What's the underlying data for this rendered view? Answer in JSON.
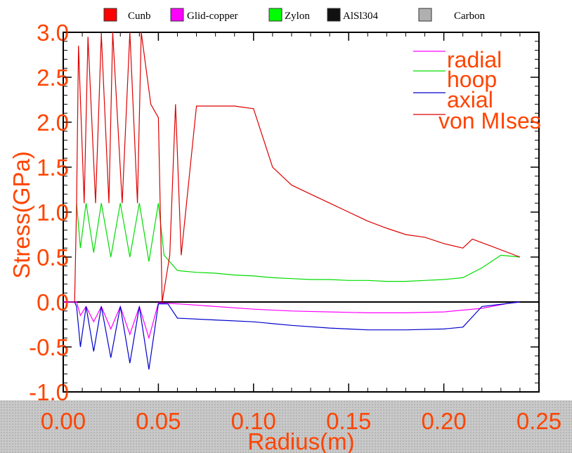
{
  "legend": [
    {
      "label": "Cunb",
      "color": "#ff0000"
    },
    {
      "label": "Glid-copper",
      "color": "#ff00ff"
    },
    {
      "label": "Zylon",
      "color": "#00ff00"
    },
    {
      "label": "AlSl304",
      "color": "#111111"
    },
    {
      "label": "Carbon",
      "color": "#b0b0b0"
    }
  ],
  "chart_data": {
    "type": "line",
    "xlabel": "Radius(m)",
    "ylabel": "Stress(GPa)",
    "xlim": [
      0.0,
      0.25
    ],
    "ylim": [
      -1.0,
      3.0
    ],
    "x_ticks": [
      "0.00",
      "0.05",
      "0.10",
      "0.15",
      "0.20",
      "0.25"
    ],
    "y_ticks": [
      "-1.0",
      "-0.5",
      "0.0",
      "0.5",
      "1.0",
      "1.5",
      "2.0",
      "2.5",
      "3.0"
    ],
    "grid": false,
    "legend_position": "top-right",
    "series": [
      {
        "name": "radial",
        "color": "#ff00ff",
        "x": [
          0.0,
          0.007,
          0.009,
          0.012,
          0.016,
          0.02,
          0.025,
          0.03,
          0.035,
          0.04,
          0.045,
          0.05,
          0.06,
          0.08,
          0.1,
          0.12,
          0.14,
          0.16,
          0.18,
          0.2,
          0.22,
          0.235,
          0.24
        ],
        "y": [
          0.0,
          0.0,
          -0.15,
          -0.05,
          -0.22,
          -0.05,
          -0.3,
          -0.05,
          -0.36,
          -0.05,
          -0.4,
          -0.01,
          -0.02,
          -0.05,
          -0.08,
          -0.1,
          -0.11,
          -0.12,
          -0.12,
          -0.11,
          -0.07,
          -0.01,
          0.0
        ]
      },
      {
        "name": "hoop",
        "color": "#00dd00",
        "x": [
          0.007,
          0.009,
          0.012,
          0.016,
          0.02,
          0.025,
          0.03,
          0.035,
          0.04,
          0.045,
          0.05,
          0.053,
          0.06,
          0.07,
          0.08,
          0.09,
          0.1,
          0.11,
          0.12,
          0.13,
          0.14,
          0.15,
          0.16,
          0.17,
          0.18,
          0.19,
          0.2,
          0.21,
          0.22,
          0.23,
          0.24
        ],
        "y": [
          1.1,
          0.6,
          1.1,
          0.55,
          1.1,
          0.5,
          1.1,
          0.5,
          1.1,
          0.45,
          1.1,
          0.52,
          0.35,
          0.33,
          0.32,
          0.3,
          0.29,
          0.27,
          0.26,
          0.25,
          0.25,
          0.24,
          0.24,
          0.23,
          0.23,
          0.24,
          0.25,
          0.27,
          0.38,
          0.52,
          0.5
        ]
      },
      {
        "name": "axial",
        "color": "#0000cc",
        "x": [
          0.006,
          0.007,
          0.009,
          0.012,
          0.016,
          0.02,
          0.025,
          0.03,
          0.035,
          0.04,
          0.045,
          0.05,
          0.055,
          0.06,
          0.08,
          0.1,
          0.12,
          0.14,
          0.16,
          0.18,
          0.2,
          0.21,
          0.22,
          0.24
        ],
        "y": [
          0.0,
          -0.05,
          -0.5,
          -0.05,
          -0.55,
          -0.05,
          -0.62,
          -0.05,
          -0.68,
          -0.05,
          -0.75,
          -0.02,
          -0.02,
          -0.18,
          -0.2,
          -0.22,
          -0.26,
          -0.29,
          -0.31,
          -0.31,
          -0.3,
          -0.28,
          -0.05,
          0.0
        ]
      },
      {
        "name": "von MIses",
        "color": "#dd0000",
        "x": [
          0.006,
          0.007,
          0.008,
          0.011,
          0.013,
          0.017,
          0.02,
          0.024,
          0.026,
          0.031,
          0.035,
          0.039,
          0.041,
          0.046,
          0.05,
          0.052,
          0.056,
          0.059,
          0.062,
          0.07,
          0.08,
          0.09,
          0.1,
          0.11,
          0.12,
          0.13,
          0.14,
          0.15,
          0.16,
          0.17,
          0.18,
          0.19,
          0.2,
          0.21,
          0.215,
          0.225,
          0.24
        ],
        "y": [
          0.0,
          1.1,
          2.85,
          1.1,
          2.95,
          1.1,
          2.98,
          1.1,
          3.0,
          1.1,
          3.0,
          1.1,
          3.0,
          2.2,
          2.05,
          0.0,
          0.52,
          2.2,
          0.52,
          2.18,
          2.18,
          2.18,
          2.15,
          1.5,
          1.3,
          1.2,
          1.1,
          1.0,
          0.9,
          0.82,
          0.75,
          0.72,
          0.65,
          0.6,
          0.7,
          0.62,
          0.5
        ]
      }
    ]
  }
}
